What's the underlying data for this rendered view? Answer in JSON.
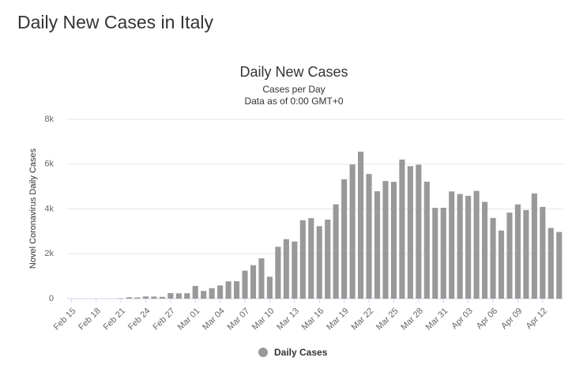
{
  "header": {
    "title": "Daily New Cases in Italy"
  },
  "chart_data": {
    "type": "bar",
    "title": "Daily New Cases",
    "subtitle": "Cases per Day",
    "subtitle2": "Data as of 0:00 GMT+0",
    "y_label": "Novel Coronavirus Daily Cases",
    "categories": [
      "Feb 15",
      null,
      null,
      "Feb 18",
      null,
      null,
      "Feb 21",
      null,
      null,
      "Feb 24",
      null,
      null,
      "Feb 27",
      null,
      null,
      "Mar 01",
      null,
      null,
      "Mar 04",
      null,
      null,
      "Mar 07",
      null,
      null,
      "Mar 10",
      null,
      null,
      "Mar 13",
      null,
      null,
      "Mar 16",
      null,
      null,
      "Mar 19",
      null,
      null,
      "Mar 22",
      null,
      null,
      "Mar 25",
      null,
      null,
      "Mar 28",
      null,
      null,
      "Mar 31",
      null,
      null,
      "Apr 03",
      null,
      null,
      "Apr 06",
      null,
      null,
      "Apr 09",
      null,
      null,
      "Apr 12",
      null,
      null
    ],
    "series": [
      {
        "name": "Daily Cases",
        "color": "#999999",
        "values": [
          0,
          0,
          0,
          0,
          0,
          0,
          17,
          62,
          53,
          97,
          93,
          78,
          250,
          238,
          240,
          566,
          342,
          466,
          587,
          769,
          778,
          1247,
          1492,
          1797,
          977,
          2313,
          2651,
          2547,
          3497,
          3590,
          3233,
          3526,
          4207,
          5322,
          5986,
          6557,
          5560,
          4789,
          5249,
          5210,
          6203,
          5909,
          5974,
          5217,
          4050,
          4053,
          4782,
          4668,
          4585,
          4805,
          4316,
          3599,
          3039,
          3836,
          4204,
          3951,
          4694,
          4092,
          3153,
          2972
        ]
      }
    ],
    "ylim": [
      0,
      8000
    ],
    "yticks": [
      0,
      {
        "value": 2000,
        "label": "2k"
      },
      {
        "value": 4000,
        "label": "4k"
      },
      {
        "value": 6000,
        "label": "6k"
      },
      {
        "value": 8000,
        "label": "8k"
      }
    ],
    "grid": true
  }
}
